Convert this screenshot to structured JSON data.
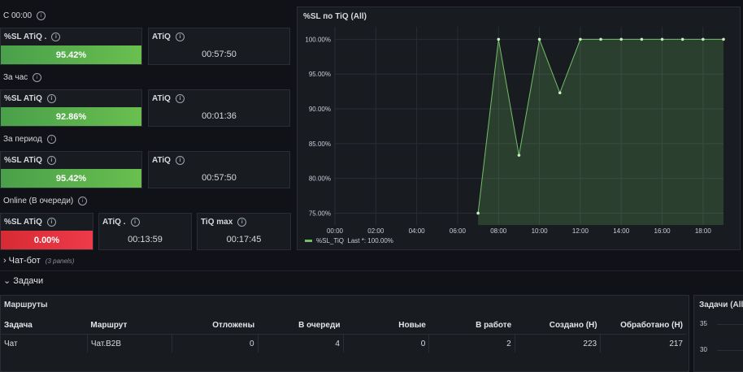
{
  "stats": {
    "since_midnight": {
      "section": "С 00:00",
      "sl_title": "%SL ATiQ .",
      "sl_value": "95.42%",
      "atiq_title": "ATiQ",
      "atiq_value": "00:57:50"
    },
    "per_hour": {
      "section": "За час",
      "sl_title": "%SL ATiQ",
      "sl_value": "92.86%",
      "atiq_title": "ATiQ",
      "atiq_value": "00:01:36"
    },
    "per_period": {
      "section": "За период",
      "sl_title": "%SL ATiQ",
      "sl_value": "95.42%",
      "atiq_title": "ATiQ",
      "atiq_value": "00:57:50"
    },
    "online": {
      "section": "Online (В очереди)",
      "sl_title": "%SL ATiQ",
      "sl_value": "0.00%",
      "atiq_title": "ATiQ .",
      "atiq_value": "00:13:59",
      "tiq_title": "TiQ max",
      "tiq_value": "00:17:45"
    }
  },
  "chart_panel": {
    "title": "%SL по TiQ (All)",
    "legend_label": "%SL_TiQ",
    "legend_last": "Last *: 100.00%",
    "series_color": "#73bf69"
  },
  "chart_data": {
    "type": "area",
    "title": "%SL по TiQ (All)",
    "x_ticks": [
      "00:00",
      "02:00",
      "04:00",
      "06:00",
      "08:00",
      "10:00",
      "12:00",
      "14:00",
      "16:00",
      "18:00"
    ],
    "y_ticks": [
      "75.00%",
      "80.00%",
      "85.00%",
      "90.00%",
      "95.00%",
      "100.00%"
    ],
    "xlim": [
      0,
      19
    ],
    "ylim": [
      73.3,
      101.8
    ],
    "series": [
      {
        "name": "%SL_TiQ",
        "x": [
          7,
          8,
          9,
          10,
          11,
          12,
          13,
          14,
          15,
          16,
          17,
          18,
          19
        ],
        "y": [
          75.0,
          100.0,
          83.33,
          100.0,
          92.31,
          100.0,
          100.0,
          100.0,
          100.0,
          100.0,
          100.0,
          100.0,
          100.0
        ]
      }
    ],
    "grid": true,
    "legend": "bottom-left"
  },
  "rows": {
    "chatbot": {
      "title": "Чат-бот",
      "meta": "(3 panels)"
    },
    "tasks": {
      "title": "Задачи"
    }
  },
  "routes_panel": {
    "title": "Маршруты",
    "columns": [
      "Задача",
      "Маршрут",
      "Отложены",
      "В очереди",
      "Новые",
      "В работе",
      "Создано (Н)",
      "Обработано (Н)"
    ],
    "rows": [
      [
        "Чат",
        "Чат.B2B",
        "0",
        "4",
        "0",
        "2",
        "223",
        "217"
      ]
    ]
  },
  "tasks_all_panel": {
    "title": "Задачи (All)",
    "y_ticks": [
      "35",
      "30"
    ]
  }
}
